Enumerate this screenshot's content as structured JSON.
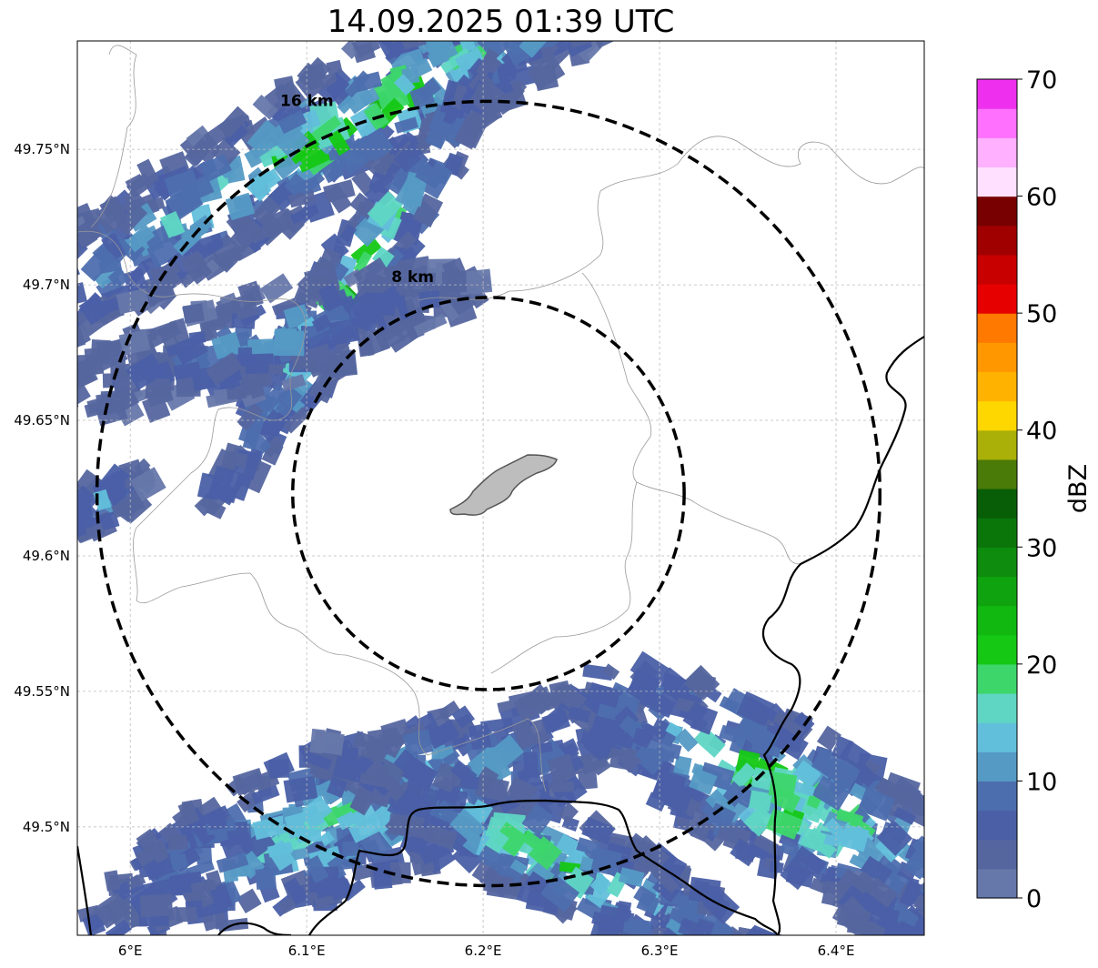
{
  "title": "14.09.2025 01:39 UTC",
  "map": {
    "lon_range": [
      5.97,
      6.45
    ],
    "lat_range": [
      49.46,
      49.79
    ],
    "lon_ticks": [
      6.0,
      6.1,
      6.2,
      6.3,
      6.4
    ],
    "lon_tick_labels": [
      "6°E",
      "6.1°E",
      "6.2°E",
      "6.3°E",
      "6.4°E"
    ],
    "lat_ticks": [
      49.5,
      49.55,
      49.6,
      49.65,
      49.7,
      49.75
    ],
    "lat_tick_labels": [
      "49.5°N",
      "49.55°N",
      "49.6°N",
      "49.65°N",
      "49.7°N",
      "49.75°N"
    ],
    "grid": true,
    "radar_center": {
      "lon": 6.203,
      "lat": 49.623
    },
    "rings": [
      {
        "label": "8 km",
        "radius_km": 8,
        "label_lon": 6.148,
        "label_lat": 49.701
      },
      {
        "label": "16 km",
        "radius_km": 16,
        "label_lon": 6.085,
        "label_lat": 49.766
      }
    ],
    "colors": {
      "country_border": "#000000",
      "admin_border": "#999999",
      "city_fill": "#bdbdbd",
      "city_edge": "#555555"
    }
  },
  "colorbar": {
    "label": "dBZ",
    "min": 0,
    "max": 70,
    "step": 2.5,
    "tick_values": [
      0,
      10,
      20,
      30,
      40,
      50,
      60,
      70
    ],
    "tick_labels": [
      "0",
      "10",
      "20",
      "30",
      "40",
      "50",
      "60",
      "70"
    ],
    "colors": [
      "#6677aa",
      "#55669f",
      "#4a5fa6",
      "#4d6eae",
      "#559ac5",
      "#62bfdb",
      "#5fd6c4",
      "#3dd66b",
      "#14c814",
      "#10b810",
      "#0fa30f",
      "#0d8c0d",
      "#0a760a",
      "#075e07",
      "#4a7a07",
      "#aab007",
      "#ffd700",
      "#ffb300",
      "#ff9800",
      "#ff7800",
      "#e60000",
      "#c80000",
      "#a00000",
      "#780000",
      "#ffe0ff",
      "#ffb0ff",
      "#ff70ff",
      "#ee30ee"
    ]
  },
  "echo_bands": [
    {
      "name": "northwest band",
      "lon": 6.12,
      "lat": 49.758,
      "rx": 22,
      "ry": 2.6,
      "angle_deg": 30,
      "peak_dbz": 22,
      "mean_dbz": 7
    },
    {
      "name": "northwest band core",
      "lon": 6.125,
      "lat": 49.7,
      "rx": 11,
      "ry": 1.4,
      "angle_deg": 58,
      "peak_dbz": 23,
      "mean_dbz": 10
    },
    {
      "name": "northwest lower",
      "lon": 6.08,
      "lat": 49.68,
      "rx": 9,
      "ry": 2.0,
      "angle_deg": 15,
      "peak_dbz": 12,
      "mean_dbz": 6
    },
    {
      "name": "southwest band",
      "lon": 6.13,
      "lat": 49.505,
      "rx": 12,
      "ry": 3.0,
      "angle_deg": 20,
      "peak_dbz": 18,
      "mean_dbz": 9
    },
    {
      "name": "south band",
      "lon": 6.24,
      "lat": 49.488,
      "rx": 11,
      "ry": 2.0,
      "angle_deg": -25,
      "peak_dbz": 19,
      "mean_dbz": 8
    },
    {
      "name": "southeast band",
      "lon": 6.37,
      "lat": 49.512,
      "rx": 10,
      "ry": 3.0,
      "angle_deg": -28,
      "peak_dbz": 23,
      "mean_dbz": 10
    },
    {
      "name": "far southeast band",
      "lon": 6.435,
      "lat": 49.465,
      "rx": 3,
      "ry": 1.2,
      "angle_deg": -30,
      "peak_dbz": 10,
      "mean_dbz": 6
    },
    {
      "name": "west edge",
      "lon": 5.985,
      "lat": 49.62,
      "rx": 2.2,
      "ry": 1.0,
      "angle_deg": 35,
      "peak_dbz": 14,
      "mean_dbz": 7
    }
  ]
}
